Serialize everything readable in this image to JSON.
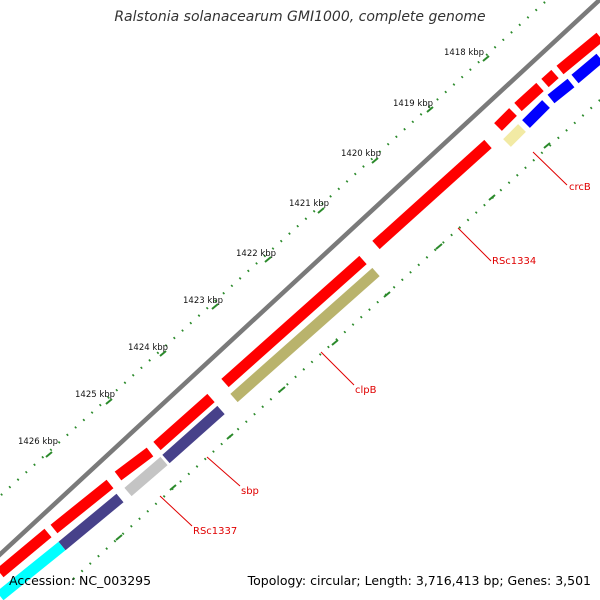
{
  "title": "Ralstonia solanacearum GMI1000, complete genome",
  "footer": {
    "accession": "Accession: NC_003295",
    "summary": "Topology: circular; Length: 3,716,413 bp; Genes: 3,501"
  },
  "ruler": {
    "ticks": [
      {
        "label": "1418 kbp"
      },
      {
        "label": "1419 kbp"
      },
      {
        "label": "1420 kbp"
      },
      {
        "label": "1421 kbp"
      },
      {
        "label": "1422 kbp"
      },
      {
        "label": "1423 kbp"
      },
      {
        "label": "1424 kbp"
      },
      {
        "label": "1425 kbp"
      },
      {
        "label": "1426 kbp"
      }
    ]
  },
  "gene_labels": {
    "crcB": "crcB",
    "RSc1334": "RSc1334",
    "clpB": "clpB",
    "sbp": "sbp",
    "RSc1337": "RSc1337"
  },
  "colors": {
    "backbone": "#7a7a7a",
    "cds_forward": "#ff0000",
    "cds_blue": "#0000ff",
    "cds_cyan": "#00ffff",
    "cds_khaki": "#b9b36c",
    "cds_navy": "#47418a",
    "cds_pale": "#f2eaa4",
    "cds_gray": "#c4c4c4",
    "tick_green": "#2b8a2b",
    "label_red": "#e00000"
  }
}
